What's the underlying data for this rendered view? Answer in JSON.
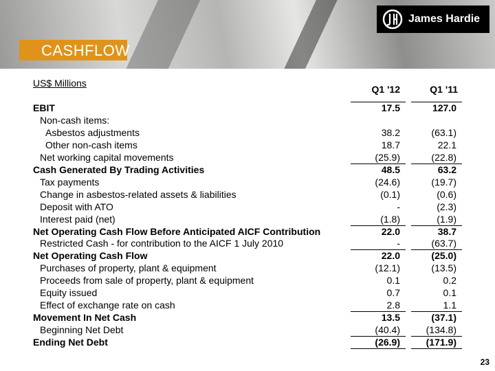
{
  "header": {
    "logo": "James Hardie",
    "title": "CASHFLOW"
  },
  "table": {
    "unit": "US$ Millions",
    "columns": [
      "Q1 '12",
      "Q1 '11"
    ],
    "rows": [
      [
        "EBIT",
        "17.5",
        "127.0"
      ],
      [
        "Non-cash items:",
        "",
        ""
      ],
      [
        "Asbestos adjustments",
        "38.2",
        "(63.1)"
      ],
      [
        "Other non-cash items",
        "18.7",
        "22.1"
      ],
      [
        "Net working capital movements",
        "(25.9)",
        "(22.8)"
      ],
      [
        "Cash Generated By Trading Activities",
        "48.5",
        "63.2"
      ],
      [
        "Tax payments",
        "(24.6)",
        "(19.7)"
      ],
      [
        "Change in asbestos-related assets & liabilities",
        "(0.1)",
        "(0.6)"
      ],
      [
        "Deposit with ATO",
        "-",
        "(2.3)"
      ],
      [
        "Interest paid (net)",
        "(1.8)",
        "(1.9)"
      ],
      [
        "Net Operating Cash Flow Before Anticipated AICF Contribution",
        "22.0",
        "38.7"
      ],
      [
        "Restricted Cash - for contribution to the AICF 1 July 2010",
        "-",
        "(63.7)"
      ],
      [
        "Net Operating Cash Flow",
        "22.0",
        "(25.0)"
      ],
      [
        "Purchases of property, plant & equipment",
        "(12.1)",
        "(13.5)"
      ],
      [
        "Proceeds from sale of property, plant & equipment",
        "0.1",
        "0.2"
      ],
      [
        "Equity issued",
        "0.7",
        "0.1"
      ],
      [
        "Effect of exchange rate on cash",
        "2.8",
        "1.1"
      ],
      [
        "Movement In Net Cash",
        "13.5",
        "(37.1)"
      ],
      [
        "Beginning Net Debt",
        "(40.4)",
        "(134.8)"
      ],
      [
        "Ending Net Debt",
        "(26.9)",
        "(171.9)"
      ]
    ]
  },
  "footer": {
    "page_number": "23"
  }
}
